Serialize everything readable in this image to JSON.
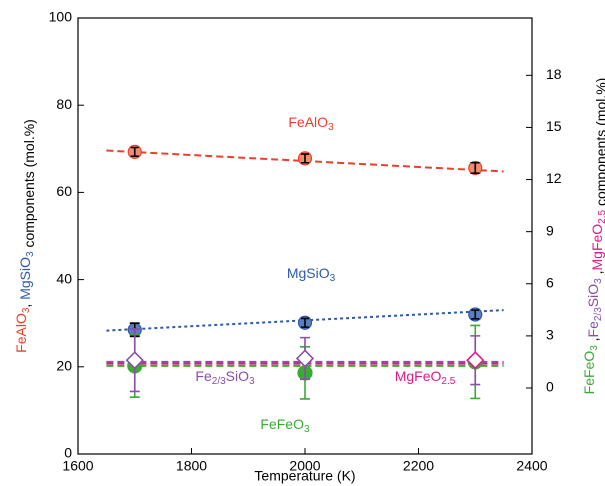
{
  "chart_data": {
    "type": "scatter",
    "xlabel": "Temperature (K)",
    "ylabel": [
      {
        "text": "FeAlO3",
        "color": "#e8402a"
      },
      {
        "text": ", ",
        "color": "#000000"
      },
      {
        "text": "MgSiO3",
        "color": "#2f5aa8"
      },
      {
        "text": " components (mol.%)",
        "color": "#000000"
      }
    ],
    "y2label": [
      {
        "text": "FeFeO3",
        "color": "#3aaa35"
      },
      {
        "text": " ,",
        "color": "#000000"
      },
      {
        "text": "Fe2/3SiO3",
        "color": "#8a4fa8"
      },
      {
        "text": " ,",
        "color": "#000000"
      },
      {
        "text": "MgFeO2.5",
        "color": "#e0198a"
      },
      {
        "text": " components (mol.%)",
        "color": "#000000"
      }
    ],
    "xlim": [
      1600,
      2400
    ],
    "xticks": [
      1600,
      1800,
      2000,
      2200,
      2400
    ],
    "ylim": [
      0,
      100
    ],
    "yticks": [
      0,
      20,
      40,
      60,
      80,
      100
    ],
    "y2lim": [
      -3.8,
      21.3
    ],
    "y2ticks": [
      0,
      3,
      6,
      9,
      12,
      15,
      18
    ],
    "series": [
      {
        "name": "FeAlO3",
        "color": "#e8402a",
        "fill": "#f58a72",
        "marker": "circle",
        "axis": "y",
        "x": [
          1700,
          2000,
          2300
        ],
        "values": [
          69.3,
          67.8,
          65.6
        ],
        "errors": [
          1,
          1,
          1.2
        ],
        "error_color": "#000000",
        "trend": {
          "x": [
            1650,
            2350
          ],
          "values": [
            69.6,
            64.8
          ],
          "style": "dashed"
        }
      },
      {
        "name": "MgSiO3",
        "color": "#2f5aa8",
        "fill": "#5a7fc0",
        "marker": "circle",
        "axis": "y",
        "x": [
          1700,
          2000,
          2300
        ],
        "values": [
          28.5,
          30.1,
          32.0
        ],
        "errors": [
          1.5,
          1,
          1
        ],
        "error_color": "#000000",
        "trend": {
          "x": [
            1650,
            2350
          ],
          "values": [
            28.3,
            33.0
          ],
          "style": "dotted"
        }
      },
      {
        "name": "FeFeO3",
        "color": "#3aaa35",
        "fill": "#3aaa35",
        "marker": "circle",
        "axis": "y2",
        "x": [
          1700,
          2000,
          2300
        ],
        "values": [
          1.27,
          0.87,
          1.5
        ],
        "errors": [
          1.8,
          1.5,
          2.1
        ],
        "error_color": "#3aaa35",
        "trend": {
          "x": [
            1650,
            2350
          ],
          "values": [
            1.27,
            1.27
          ],
          "style": "dashed"
        }
      },
      {
        "name": "Fe2/3SiO3",
        "color": "#8a4fa8",
        "fill": "#ffffff",
        "marker": "diamond",
        "axis": "y2",
        "x": [
          1700,
          2000,
          2300
        ],
        "values": [
          1.6,
          1.7,
          null
        ],
        "errors": [
          1.8,
          1.2,
          null
        ],
        "error_color": "#8a4fa8",
        "trend": {
          "x": [
            1650,
            2350
          ],
          "values": [
            1.5,
            1.5
          ],
          "style": "dashed"
        }
      },
      {
        "name": "MgFeO2.5",
        "color": "#e0198a",
        "fill": "#ffffff",
        "marker": "diamond",
        "axis": "y2",
        "x": [
          1700,
          2000,
          2300
        ],
        "values": [
          null,
          null,
          1.6
        ],
        "errors": [
          null,
          null,
          1.4
        ],
        "error_color": "#8a4fa8",
        "trend": {
          "x": [
            1650,
            2350
          ],
          "values": [
            1.4,
            1.4
          ],
          "style": "dashed"
        }
      }
    ]
  }
}
